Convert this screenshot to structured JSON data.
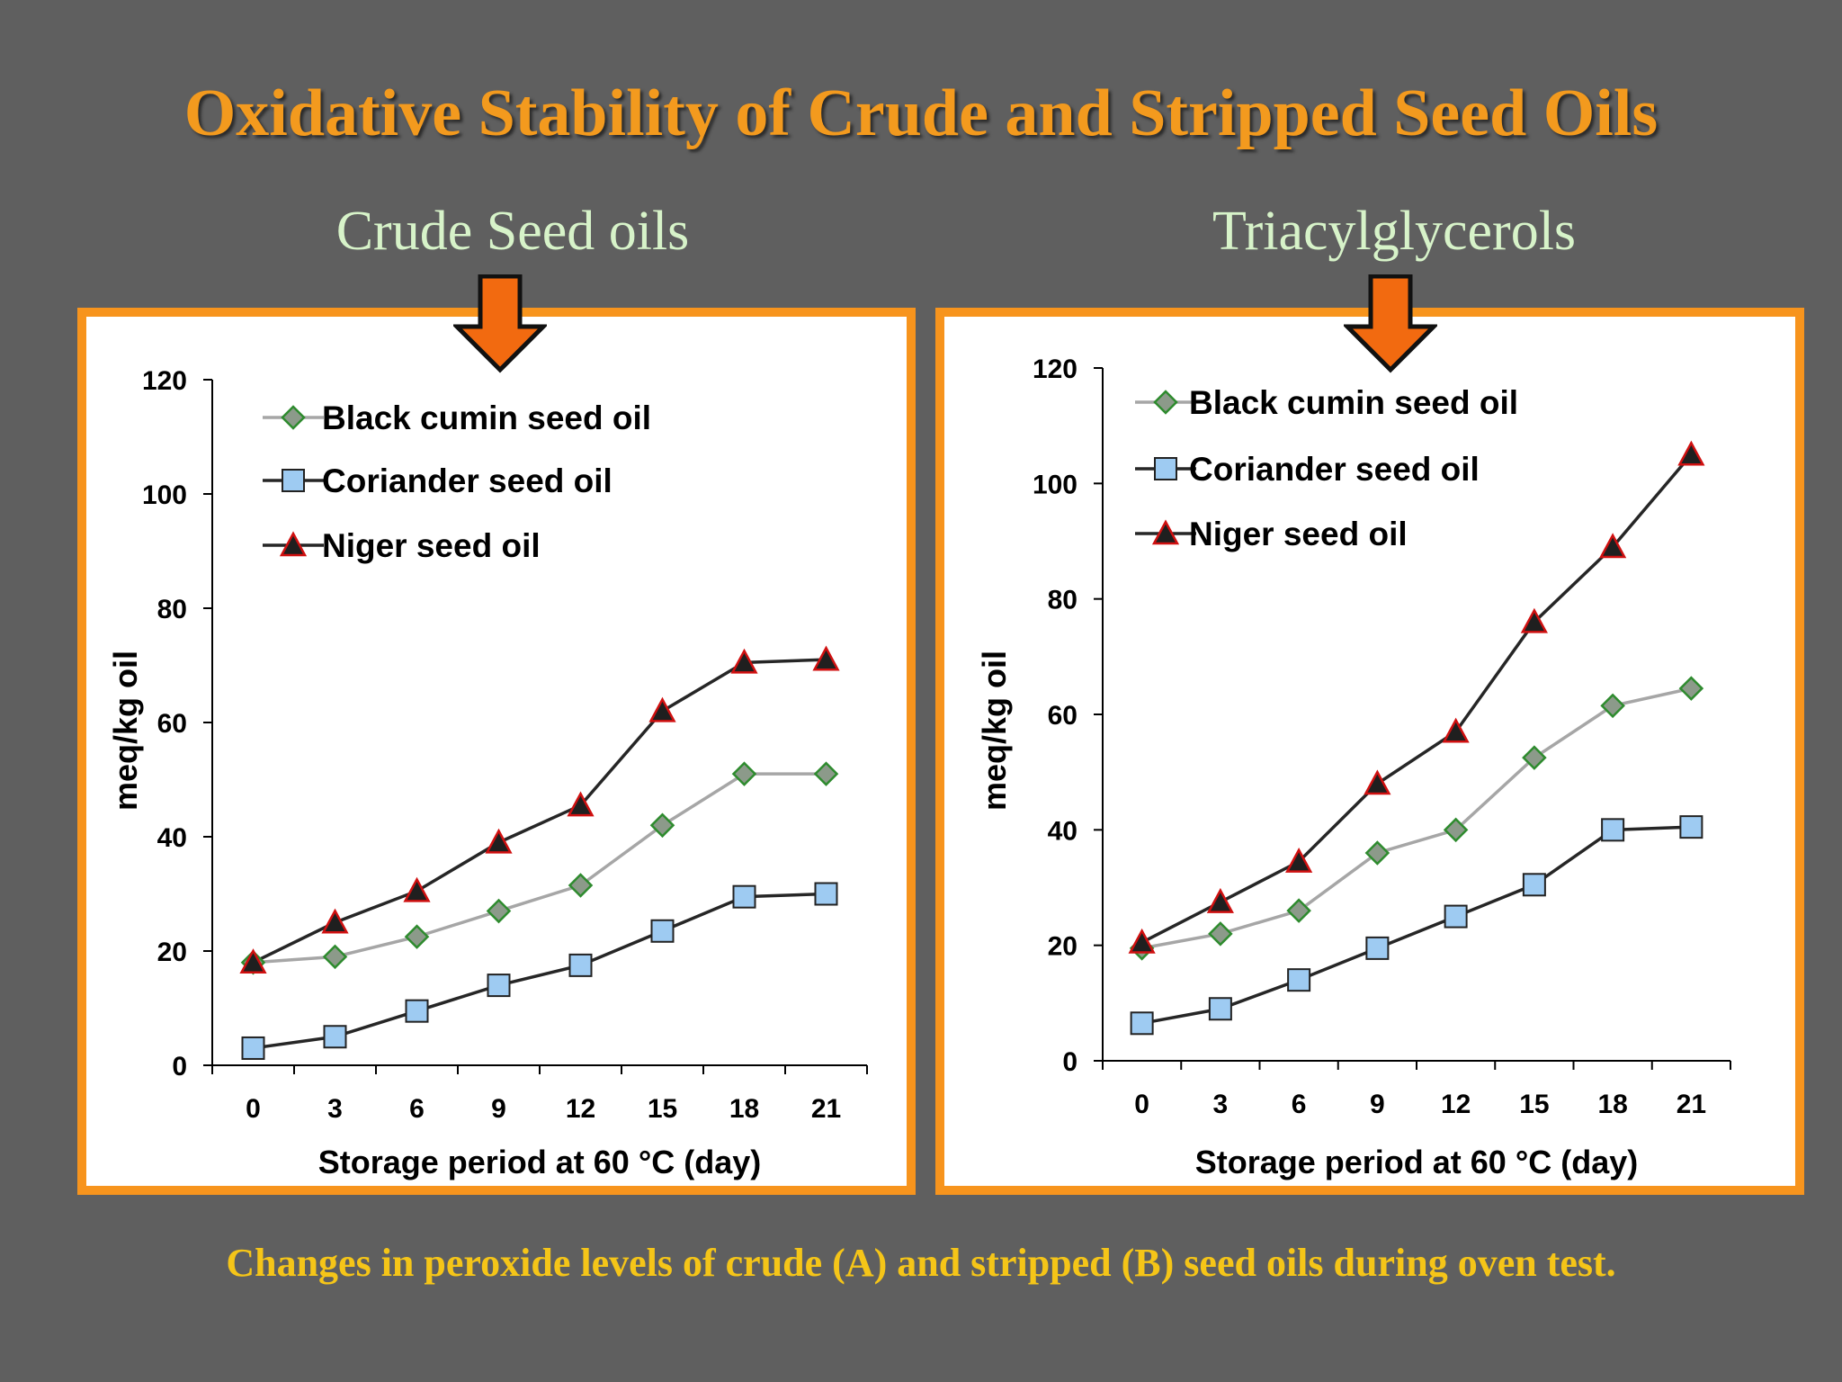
{
  "title": "Oxidative Stability of  Crude and Stripped Seed Oils",
  "caption": "Changes in peroxide levels of crude (A) and stripped (B) seed oils during oven test.",
  "colors": {
    "background": "#5f5f5f",
    "title": "#f39a1e",
    "subtitle": "#d7f3c9",
    "panel_border": "#f7941d",
    "arrow_fill": "#f26a10",
    "caption": "#f5c518"
  },
  "chart_data": [
    {
      "type": "line",
      "title": "Crude Seed oils",
      "xlabel": "Storage period at 60 °C (day)",
      "ylabel": "meq/kg oil",
      "x": [
        0,
        3,
        6,
        9,
        12,
        15,
        18,
        21
      ],
      "ylim": [
        0,
        120
      ],
      "yticks": [
        0,
        20,
        40,
        60,
        80,
        100,
        120
      ],
      "grid": false,
      "legend_placement": "top-left",
      "series": [
        {
          "name": "Black cumin seed oil",
          "marker": "diamond",
          "line_color": "#a6a6a6",
          "marker_color": "#8c9a8a",
          "marker_edge": "#2e8b2e",
          "values": [
            18,
            19,
            22.5,
            27,
            31.5,
            42,
            51,
            51
          ]
        },
        {
          "name": "Coriander seed oil",
          "marker": "square",
          "line_color": "#262626",
          "marker_color": "#9ecbf2",
          "marker_edge": "#222222",
          "values": [
            3,
            5,
            9.5,
            14,
            17.5,
            23.5,
            29.5,
            30
          ]
        },
        {
          "name": "Niger seed oil",
          "marker": "triangle",
          "line_color": "#262626",
          "marker_color": "#1f1f1f",
          "marker_edge": "#d01010",
          "values": [
            18,
            25,
            30.5,
            39,
            45.5,
            62,
            70.5,
            71
          ]
        }
      ]
    },
    {
      "type": "line",
      "title": "Triacylglycerols",
      "xlabel": "Storage period at 60 °C (day)",
      "ylabel": "meq/kg oil",
      "x": [
        0,
        3,
        6,
        9,
        12,
        15,
        18,
        21
      ],
      "ylim": [
        0,
        120
      ],
      "yticks": [
        0,
        20,
        40,
        60,
        80,
        100,
        120
      ],
      "grid": false,
      "legend_placement": "top-left",
      "series": [
        {
          "name": "Black cumin seed oil",
          "marker": "diamond",
          "line_color": "#a6a6a6",
          "marker_color": "#8c9a8a",
          "marker_edge": "#2e8b2e",
          "values": [
            19.5,
            22,
            26,
            36,
            40,
            52.5,
            61.5,
            64.5
          ]
        },
        {
          "name": "Coriander seed oil",
          "marker": "square",
          "line_color": "#262626",
          "marker_color": "#9ecbf2",
          "marker_edge": "#222222",
          "values": [
            6.5,
            9,
            14,
            19.5,
            25,
            30.5,
            40,
            40.5
          ]
        },
        {
          "name": "Niger seed oil",
          "marker": "triangle",
          "line_color": "#262626",
          "marker_color": "#1f1f1f",
          "marker_edge": "#d01010",
          "values": [
            20.5,
            27.5,
            34.5,
            48,
            57,
            76,
            89,
            105
          ]
        }
      ]
    }
  ]
}
